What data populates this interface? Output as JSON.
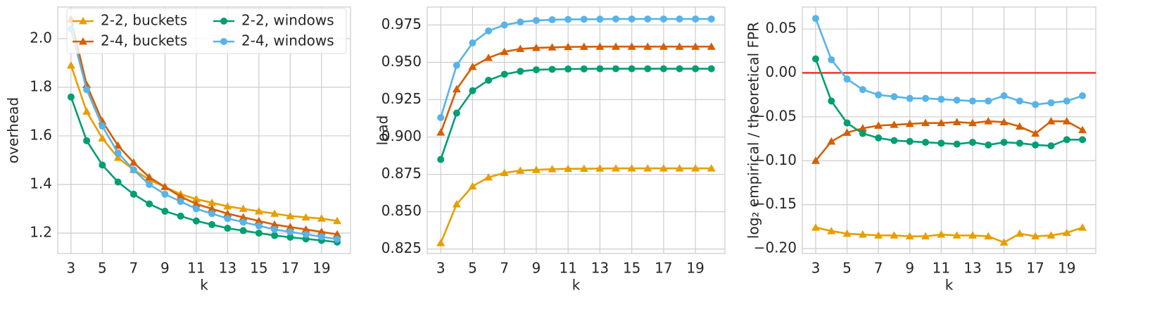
{
  "chart_data": [
    {
      "type": "line",
      "x_label": "k",
      "y_label": "overhead",
      "x": [
        3,
        4,
        5,
        6,
        7,
        8,
        9,
        10,
        11,
        12,
        13,
        14,
        15,
        16,
        17,
        18,
        19,
        20
      ],
      "xlim": [
        2.15,
        20.85
      ],
      "xticks": [
        3,
        5,
        7,
        9,
        11,
        13,
        15,
        17,
        19
      ],
      "ylim": [
        1.116,
        2.13
      ],
      "yticks": [
        1.2,
        1.4,
        1.6,
        1.8,
        {
          "value": 2.0,
          "label": "2.0"
        }
      ],
      "grid": true,
      "legend": "upper right",
      "series": [
        {
          "name": "2-2, buckets",
          "color": "#e69f00",
          "marker": "triangle",
          "values": [
            1.89,
            1.7,
            1.59,
            1.51,
            1.46,
            1.42,
            1.39,
            1.36,
            1.34,
            1.325,
            1.31,
            1.3,
            1.29,
            1.28,
            1.27,
            1.265,
            1.26,
            1.25
          ]
        },
        {
          "name": "2-4, buckets",
          "color": "#d55e00",
          "marker": "triangle",
          "values": [
            2.08,
            1.81,
            1.66,
            1.56,
            1.49,
            1.43,
            1.39,
            1.35,
            1.32,
            1.3,
            1.28,
            1.265,
            1.25,
            1.235,
            1.225,
            1.215,
            1.205,
            1.195
          ]
        },
        {
          "name": "2-2, windows",
          "color": "#009e73",
          "marker": "circle",
          "values": [
            1.76,
            1.58,
            1.48,
            1.41,
            1.36,
            1.32,
            1.29,
            1.27,
            1.25,
            1.235,
            1.22,
            1.21,
            1.2,
            1.19,
            1.183,
            1.176,
            1.17,
            1.163
          ]
        },
        {
          "name": "2-4, windows",
          "color": "#56b4e9",
          "marker": "circle",
          "values": [
            2.04,
            1.79,
            1.64,
            1.53,
            1.46,
            1.4,
            1.36,
            1.33,
            1.3,
            1.28,
            1.26,
            1.245,
            1.23,
            1.215,
            1.205,
            1.195,
            1.185,
            1.175
          ]
        }
      ]
    },
    {
      "type": "line",
      "x_label": "k",
      "y_label": "load",
      "x": [
        3,
        4,
        5,
        6,
        7,
        8,
        9,
        10,
        11,
        12,
        13,
        14,
        15,
        16,
        17,
        18,
        19,
        20
      ],
      "xlim": [
        2.15,
        20.85
      ],
      "xticks": [
        3,
        5,
        7,
        9,
        11,
        13,
        15,
        17,
        19
      ],
      "ylim": [
        0.822,
        0.987
      ],
      "yticks": [
        0.825,
        {
          "value": 0.85,
          "label": "0.850"
        },
        0.875,
        {
          "value": 0.9,
          "label": "0.900"
        },
        0.925,
        {
          "value": 0.95,
          "label": "0.950"
        },
        0.975
      ],
      "grid": true,
      "series": [
        {
          "color": "#e69f00",
          "marker": "triangle",
          "values": [
            0.829,
            0.855,
            0.867,
            0.873,
            0.876,
            0.8775,
            0.878,
            0.8785,
            0.8787,
            0.8788,
            0.8789,
            0.879,
            0.879,
            0.879,
            0.879,
            0.879,
            0.879,
            0.879
          ]
        },
        {
          "color": "#d55e00",
          "marker": "triangle",
          "values": [
            0.903,
            0.932,
            0.947,
            0.953,
            0.957,
            0.959,
            0.9597,
            0.96,
            0.9603,
            0.9604,
            0.9605,
            0.9605,
            0.9605,
            0.9605,
            0.9605,
            0.9605,
            0.9605,
            0.9605
          ]
        },
        {
          "color": "#009e73",
          "marker": "circle",
          "values": [
            0.885,
            0.916,
            0.931,
            0.938,
            0.942,
            0.944,
            0.945,
            0.9453,
            0.9455,
            0.9456,
            0.9457,
            0.9457,
            0.9457,
            0.9457,
            0.9457,
            0.9457,
            0.9457,
            0.9457
          ]
        },
        {
          "color": "#56b4e9",
          "marker": "circle",
          "values": [
            0.913,
            0.948,
            0.963,
            0.971,
            0.975,
            0.977,
            0.978,
            0.9785,
            0.9787,
            0.9788,
            0.9789,
            0.979,
            0.979,
            0.979,
            0.979,
            0.979,
            0.979,
            0.979
          ]
        }
      ]
    },
    {
      "type": "line",
      "x_label": "k",
      "y_label": "log₂ empirical / theoretical FPR",
      "x": [
        3,
        4,
        5,
        6,
        7,
        8,
        9,
        10,
        11,
        12,
        13,
        14,
        15,
        16,
        17,
        18,
        19,
        20
      ],
      "xlim": [
        2.15,
        20.85
      ],
      "xticks": [
        3,
        5,
        7,
        9,
        11,
        13,
        15,
        17,
        19
      ],
      "ylim": [
        -0.2056,
        0.075
      ],
      "yticks": [
        {
          "value": -0.2,
          "label": "−0.20"
        },
        {
          "value": -0.15,
          "label": "−0.15"
        },
        {
          "value": -0.1,
          "label": "−0.10"
        },
        {
          "value": -0.05,
          "label": "−0.05"
        },
        {
          "value": 0,
          "label": "0.00"
        },
        0.05
      ],
      "grid": true,
      "hline": {
        "value": 0,
        "color": "#ff0000"
      },
      "series": [
        {
          "color": "#e69f00",
          "marker": "triangle",
          "values": [
            -0.176,
            -0.18,
            -0.183,
            -0.184,
            -0.185,
            -0.185,
            -0.186,
            -0.186,
            -0.184,
            -0.185,
            -0.185,
            -0.186,
            -0.193,
            -0.183,
            -0.186,
            -0.185,
            -0.182,
            -0.176
          ]
        },
        {
          "color": "#d55e00",
          "marker": "triangle",
          "values": [
            -0.1,
            -0.078,
            -0.068,
            -0.063,
            -0.06,
            -0.059,
            -0.058,
            -0.057,
            -0.057,
            -0.056,
            -0.057,
            -0.055,
            -0.056,
            -0.061,
            -0.069,
            -0.055,
            -0.055,
            -0.065
          ]
        },
        {
          "color": "#009e73",
          "marker": "circle",
          "values": [
            0.016,
            -0.032,
            -0.057,
            -0.069,
            -0.074,
            -0.077,
            -0.078,
            -0.079,
            -0.08,
            -0.081,
            -0.079,
            -0.082,
            -0.079,
            -0.08,
            -0.082,
            -0.083,
            -0.076,
            -0.076
          ]
        },
        {
          "color": "#56b4e9",
          "marker": "circle",
          "values": [
            0.062,
            0.015,
            -0.007,
            -0.019,
            -0.025,
            -0.027,
            -0.029,
            -0.029,
            -0.03,
            -0.031,
            -0.032,
            -0.032,
            -0.026,
            -0.032,
            -0.036,
            -0.034,
            -0.032,
            -0.026
          ]
        }
      ]
    }
  ]
}
